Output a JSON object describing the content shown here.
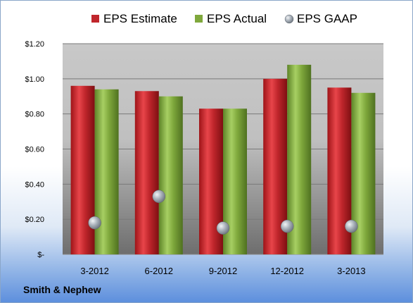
{
  "chart_data": {
    "type": "bar",
    "categories": [
      "3-2012",
      "6-2012",
      "9-2012",
      "12-2012",
      "3-2013"
    ],
    "series": [
      {
        "name": "EPS Estimate",
        "values": [
          0.96,
          0.93,
          0.83,
          1.0,
          0.95
        ]
      },
      {
        "name": "EPS Actual",
        "values": [
          0.94,
          0.9,
          0.83,
          1.08,
          0.92
        ]
      },
      {
        "name": "EPS GAAP",
        "values": [
          0.18,
          0.33,
          0.15,
          0.16,
          0.16
        ],
        "marker": "circle"
      }
    ],
    "y_ticks": [
      "$-",
      "$0.20",
      "$0.40",
      "$0.60",
      "$0.80",
      "$1.00",
      "$1.20"
    ],
    "ylim": [
      0,
      1.2
    ],
    "grid": true,
    "legend_position": "top",
    "colors": {
      "EPS Estimate": "#c0262c",
      "EPS Actual": "#7fa83c",
      "EPS GAAP": "#9aa3ad"
    }
  },
  "footer": {
    "company": "Smith & Nephew"
  }
}
